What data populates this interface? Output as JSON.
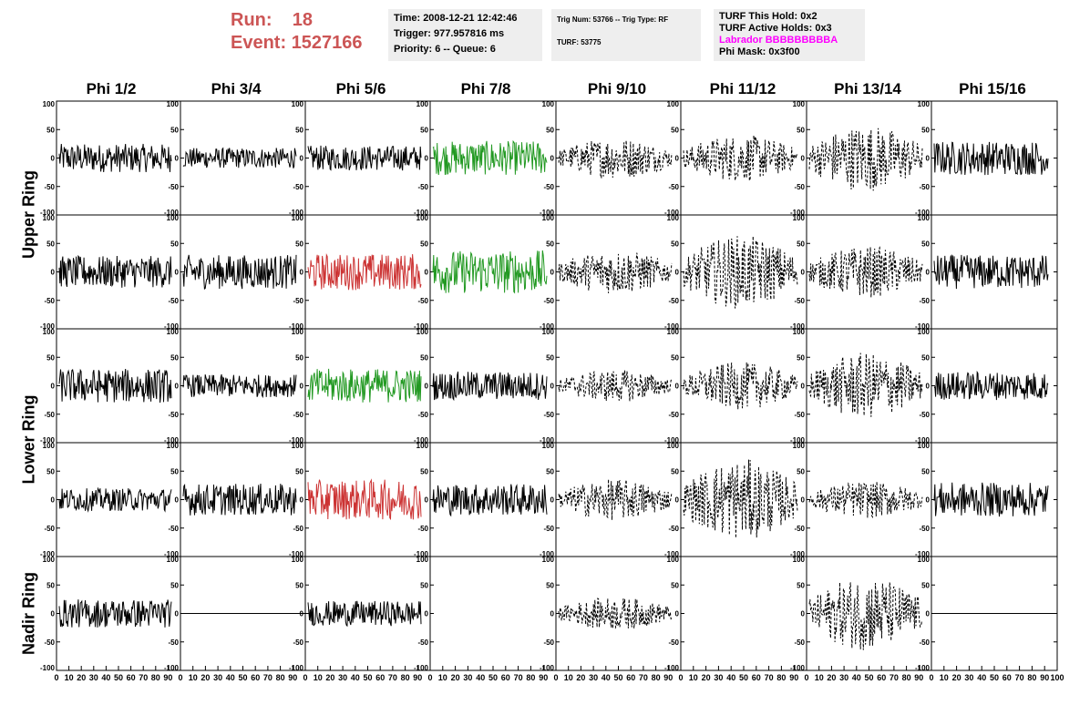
{
  "header": {
    "run_label": "Run:",
    "run_value": "18",
    "event_label": "Event:",
    "event_value": "1527166",
    "time": "Time: 2008-12-21 12:42:46",
    "trigger": "Trigger: 977.957816 ms",
    "priority": "Priority: 6 -- Queue: 6",
    "trig_num": "Trig Num: 53766 -- Trig Type: RF",
    "turf": "TURF: 53775",
    "turf_hold": "TURF This Hold: 0x2",
    "turf_active": "TURF Active Holds: 0x3",
    "labrador": "Labrador BBBBBBBBBA",
    "phi_mask": "Phi Mask: 0x3f00"
  },
  "columns": [
    "Phi 1/2",
    "Phi 3/4",
    "Phi 5/6",
    "Phi 7/8",
    "Phi 9/10",
    "Phi 11/12",
    "Phi 13/14",
    "Phi 15/16"
  ],
  "rows": [
    "Upper Ring",
    "Lower Ring",
    "Nadir Ring"
  ],
  "colors": {
    "header_run": "#cc5555",
    "labrador": "#ff00ff",
    "trace_black": "#000000",
    "trace_green": "#229922",
    "trace_red": "#cc3333",
    "panel_bg": "#eeeeee"
  },
  "chart_data": {
    "type": "line",
    "description_axes": {
      "x_ticks": [
        "0",
        "10",
        "20",
        "30",
        "40",
        "50",
        "60",
        "70",
        "80",
        "90",
        "100"
      ],
      "xlim": [
        0,
        100
      ],
      "y_ticks": [
        "100",
        "50",
        "0",
        "-50",
        "-100"
      ],
      "ylim": [
        -100,
        100
      ]
    },
    "panels": [
      {
        "row": 0,
        "col": 0,
        "style": "solid",
        "color": "black",
        "amplitude": 25
      },
      {
        "row": 0,
        "col": 1,
        "style": "solid",
        "color": "black",
        "amplitude": 18
      },
      {
        "row": 0,
        "col": 2,
        "style": "solid",
        "color": "black",
        "amplitude": 22
      },
      {
        "row": 0,
        "col": 3,
        "style": "solid",
        "color": "green",
        "amplitude": 30
      },
      {
        "row": 0,
        "col": 4,
        "style": "dashed",
        "color": "black",
        "amplitude": 28
      },
      {
        "row": 0,
        "col": 5,
        "style": "dashed",
        "color": "black",
        "amplitude": 32
      },
      {
        "row": 0,
        "col": 6,
        "style": "dashed",
        "color": "black",
        "amplitude": 45
      },
      {
        "row": 0,
        "col": 7,
        "style": "solid",
        "color": "black",
        "amplitude": 30
      },
      {
        "row": 1,
        "col": 0,
        "style": "solid",
        "color": "black",
        "amplitude": 28
      },
      {
        "row": 1,
        "col": 1,
        "style": "solid",
        "color": "black",
        "amplitude": 30
      },
      {
        "row": 1,
        "col": 2,
        "style": "solid",
        "color": "red",
        "amplitude": 32
      },
      {
        "row": 1,
        "col": 3,
        "style": "solid",
        "color": "green",
        "amplitude": 38
      },
      {
        "row": 1,
        "col": 4,
        "style": "dashed",
        "color": "black",
        "amplitude": 30
      },
      {
        "row": 1,
        "col": 5,
        "style": "dashed",
        "color": "black",
        "amplitude": 50
      },
      {
        "row": 1,
        "col": 6,
        "style": "dashed",
        "color": "black",
        "amplitude": 35
      },
      {
        "row": 1,
        "col": 7,
        "style": "solid",
        "color": "black",
        "amplitude": 30
      },
      {
        "row": 2,
        "col": 0,
        "style": "solid",
        "color": "black",
        "amplitude": 30
      },
      {
        "row": 2,
        "col": 1,
        "style": "solid",
        "color": "black",
        "amplitude": 20
      },
      {
        "row": 2,
        "col": 2,
        "style": "solid",
        "color": "green",
        "amplitude": 30
      },
      {
        "row": 2,
        "col": 3,
        "style": "solid",
        "color": "black",
        "amplitude": 25
      },
      {
        "row": 2,
        "col": 4,
        "style": "dashed",
        "color": "black",
        "amplitude": 22
      },
      {
        "row": 2,
        "col": 5,
        "style": "dashed",
        "color": "black",
        "amplitude": 32
      },
      {
        "row": 2,
        "col": 6,
        "style": "dashed",
        "color": "black",
        "amplitude": 45
      },
      {
        "row": 2,
        "col": 7,
        "style": "solid",
        "color": "black",
        "amplitude": 25
      },
      {
        "row": 3,
        "col": 0,
        "style": "solid",
        "color": "black",
        "amplitude": 20
      },
      {
        "row": 3,
        "col": 1,
        "style": "solid",
        "color": "black",
        "amplitude": 28
      },
      {
        "row": 3,
        "col": 2,
        "style": "solid",
        "color": "red",
        "amplitude": 35
      },
      {
        "row": 3,
        "col": 3,
        "style": "solid",
        "color": "black",
        "amplitude": 28
      },
      {
        "row": 3,
        "col": 4,
        "style": "dashed",
        "color": "black",
        "amplitude": 28
      },
      {
        "row": 3,
        "col": 5,
        "style": "dashed",
        "color": "black",
        "amplitude": 55
      },
      {
        "row": 3,
        "col": 6,
        "style": "dashed",
        "color": "black",
        "amplitude": 25
      },
      {
        "row": 3,
        "col": 7,
        "style": "solid",
        "color": "black",
        "amplitude": 30
      },
      {
        "row": 4,
        "col": 0,
        "style": "solid",
        "color": "black",
        "amplitude": 25
      },
      {
        "row": 4,
        "col": 1,
        "style": "flat",
        "color": "black",
        "amplitude": 0
      },
      {
        "row": 4,
        "col": 2,
        "style": "solid",
        "color": "black",
        "amplitude": 22
      },
      {
        "row": 4,
        "col": 3,
        "style": "none",
        "color": "black",
        "amplitude": 0
      },
      {
        "row": 4,
        "col": 4,
        "style": "dashed",
        "color": "black",
        "amplitude": 22
      },
      {
        "row": 4,
        "col": 5,
        "style": "none",
        "color": "black",
        "amplitude": 0
      },
      {
        "row": 4,
        "col": 6,
        "style": "dashed",
        "color": "black",
        "amplitude": 50
      },
      {
        "row": 4,
        "col": 7,
        "style": "flat",
        "color": "black",
        "amplitude": 0
      }
    ]
  }
}
